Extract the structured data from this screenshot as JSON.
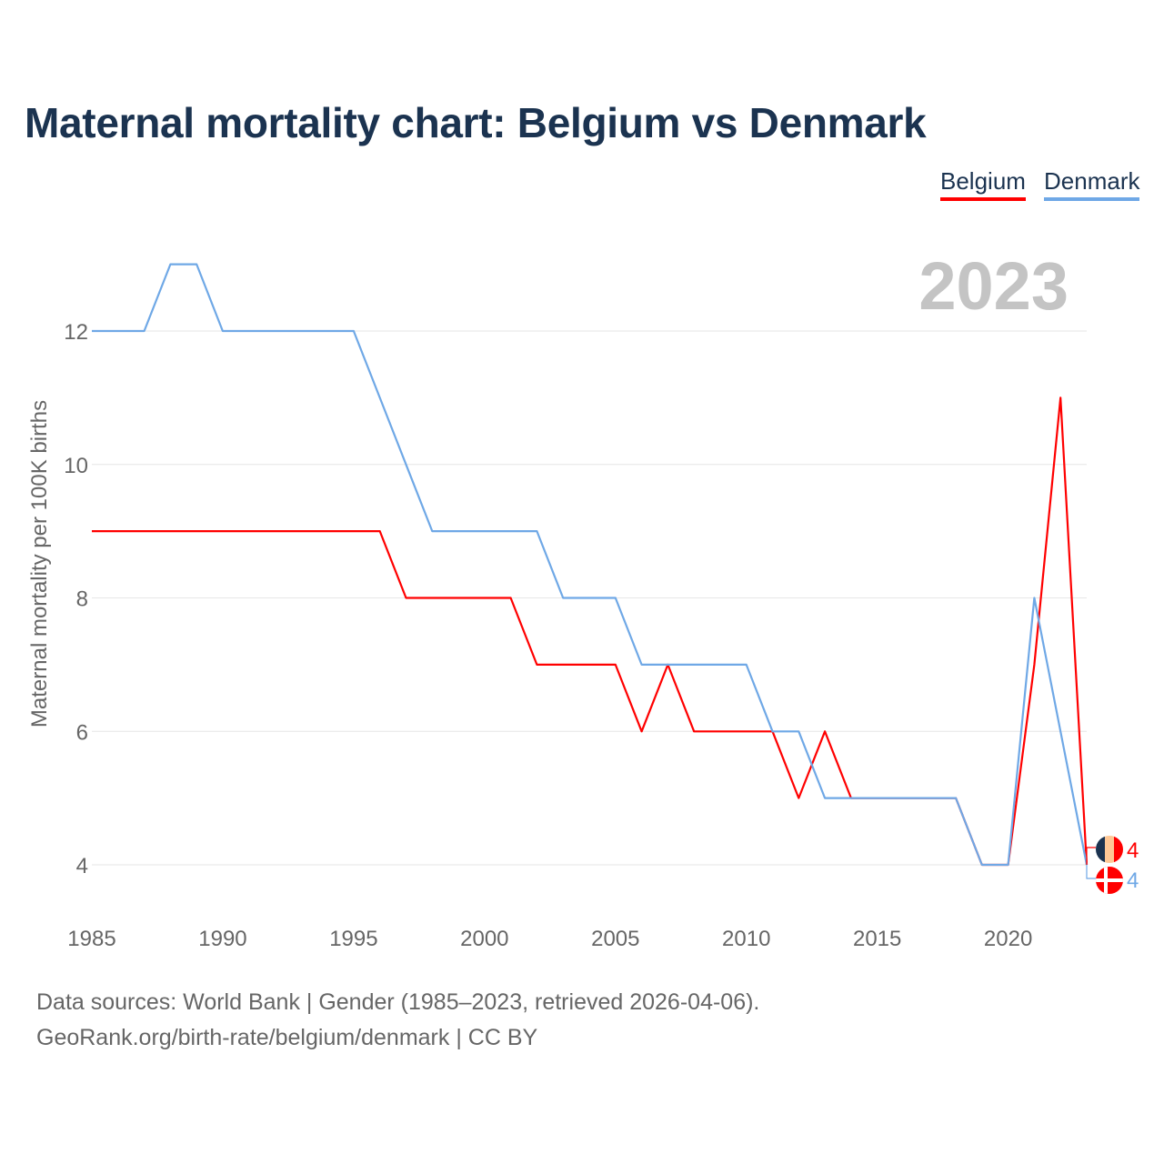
{
  "chart_data": {
    "type": "line",
    "title": "Maternal mortality chart: Belgium vs Denmark",
    "xlabel": "",
    "ylabel": "Maternal mortality per 100K births",
    "year_label": "2023",
    "x": [
      1985,
      1986,
      1987,
      1988,
      1989,
      1990,
      1991,
      1992,
      1993,
      1994,
      1995,
      1996,
      1997,
      1998,
      1999,
      2000,
      2001,
      2002,
      2003,
      2004,
      2005,
      2006,
      2007,
      2008,
      2009,
      2010,
      2011,
      2012,
      2013,
      2014,
      2015,
      2016,
      2017,
      2018,
      2019,
      2020,
      2021,
      2022,
      2023
    ],
    "series": [
      {
        "name": "Belgium",
        "color": "#ff0000",
        "end_label": "4",
        "values": [
          9,
          9,
          9,
          9,
          9,
          9,
          9,
          9,
          9,
          9,
          9,
          9,
          8,
          8,
          8,
          8,
          8,
          7,
          7,
          7,
          7,
          6,
          7,
          6,
          6,
          6,
          6,
          5,
          6,
          5,
          5,
          5,
          5,
          5,
          4,
          4,
          7,
          11,
          4
        ]
      },
      {
        "name": "Denmark",
        "color": "#6fa8e6",
        "end_label": "4",
        "values": [
          12,
          12,
          12,
          13,
          13,
          12,
          12,
          12,
          12,
          12,
          12,
          11,
          10,
          9,
          9,
          9,
          9,
          9,
          8,
          8,
          8,
          7,
          7,
          7,
          7,
          7,
          6,
          6,
          5,
          5,
          5,
          5,
          5,
          5,
          4,
          4,
          8,
          6,
          4
        ]
      }
    ],
    "xticks": [
      "1985",
      "1990",
      "1995",
      "2000",
      "2005",
      "2010",
      "2015",
      "2020"
    ],
    "yticks": [
      "4",
      "6",
      "8",
      "10",
      "12"
    ],
    "xlim": [
      1985,
      2023
    ],
    "ylim": [
      4,
      12
    ],
    "grid": true,
    "legend_position": "top-right"
  },
  "footer": {
    "line1": "Data sources: World Bank | Gender (1985–2023, retrieved 2026-04-06).",
    "line2": "GeoRank.org/birth-rate/belgium/denmark | CC BY"
  }
}
